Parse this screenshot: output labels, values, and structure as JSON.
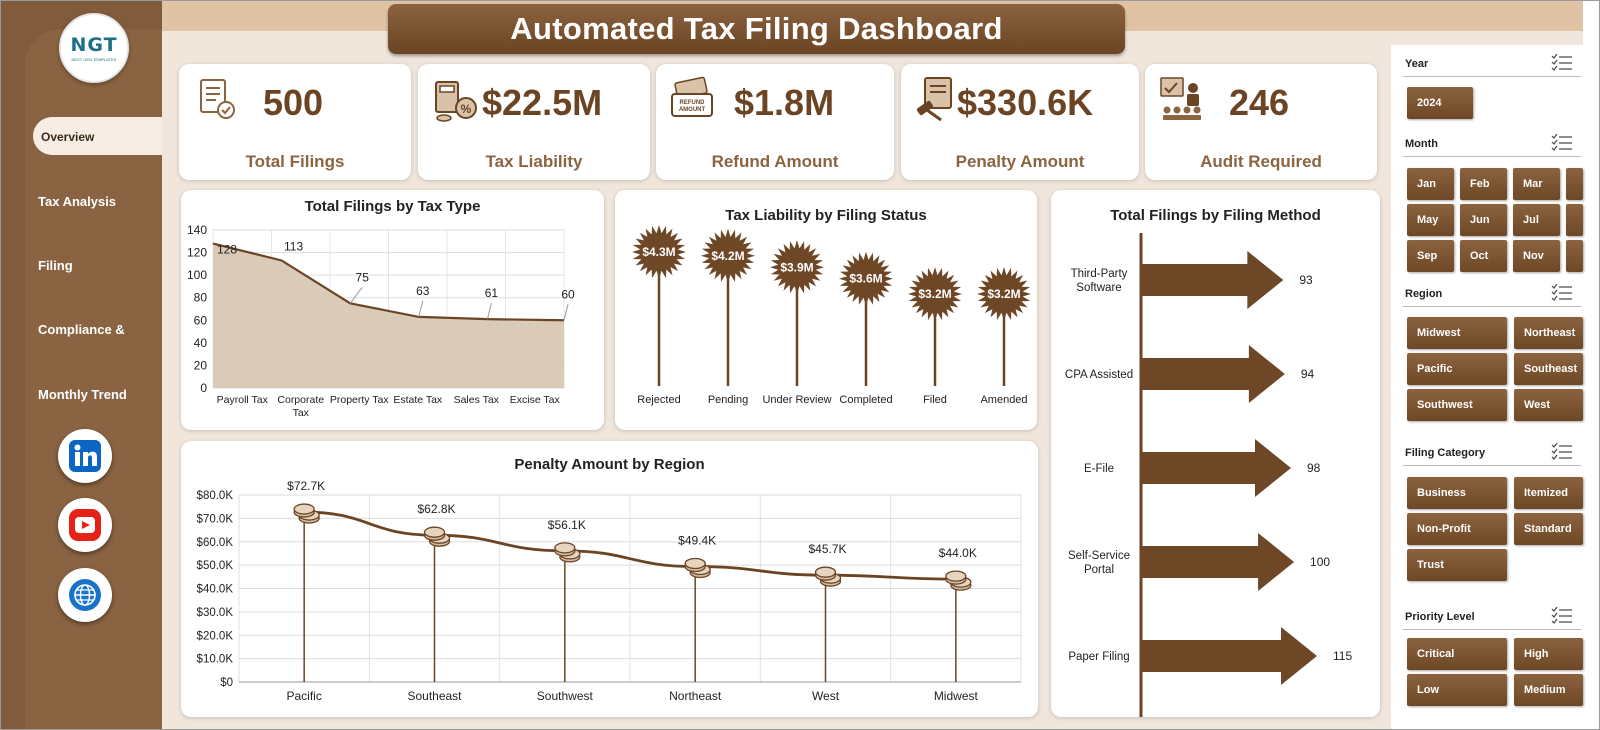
{
  "dashboard": {
    "title": "Automated Tax Filing Dashboard",
    "logo_text": "NGT",
    "logo_sub": "NEXT GEN TEMPLATES"
  },
  "sidebar": {
    "items": [
      {
        "label": "Overview",
        "active": true
      },
      {
        "label": "Tax Analysis"
      },
      {
        "label": "Filing"
      },
      {
        "label": "Compliance &"
      },
      {
        "label": "Monthly Trend"
      }
    ],
    "social": [
      "linkedin-icon",
      "youtube-icon",
      "globe-icon"
    ]
  },
  "kpis": [
    {
      "value": "500",
      "label": "Total Filings",
      "icon": "filing-checklist-icon"
    },
    {
      "value": "$22.5M",
      "label": "Tax Liability",
      "icon": "tax-calculator-icon"
    },
    {
      "value": "$1.8M",
      "label": "Refund Amount",
      "icon": "refund-money-icon"
    },
    {
      "value": "$330.6K",
      "label": "Penalty Amount",
      "icon": "gavel-penalty-icon"
    },
    {
      "value": "246",
      "label": "Audit Required",
      "icon": "audit-presentation-icon"
    }
  ],
  "colors": {
    "brand": "#805b3c",
    "accent": "#6b4424",
    "fill": "#d8c7b4"
  },
  "chart_data": [
    {
      "type": "area",
      "title": "Total Filings by Tax Type",
      "categories": [
        "Payroll Tax",
        "Corporate Tax",
        "Property Tax",
        "Estate Tax",
        "Sales Tax",
        "Excise Tax"
      ],
      "values": [
        128,
        113,
        75,
        63,
        61,
        60
      ],
      "ylim": [
        0,
        140
      ],
      "yticks": [
        "0",
        "20",
        "40",
        "60",
        "80",
        "100",
        "120",
        "140"
      ],
      "grid": true
    },
    {
      "type": "bar",
      "title": "Tax Liability by Filing Status",
      "categories": [
        "Rejected",
        "Pending",
        "Under Review",
        "Completed",
        "Filed",
        "Amended"
      ],
      "values": [
        4.3,
        4.2,
        3.9,
        3.6,
        3.2,
        3.2
      ],
      "labels": [
        "$4.3M",
        "$4.2M",
        "$3.9M",
        "$3.6M",
        "$3.2M",
        "$3.2M"
      ]
    },
    {
      "type": "bar",
      "title": "Total Filings by Filing Method",
      "orientation": "horizontal",
      "categories": [
        "Third-Party Software",
        "CPA Assisted",
        "E-File",
        "Self-Service Portal",
        "Paper Filing"
      ],
      "values": [
        93,
        94,
        98,
        100,
        115
      ]
    },
    {
      "type": "line",
      "title": "Penalty Amount by Region",
      "categories": [
        "Pacific",
        "Southeast",
        "Southwest",
        "Northeast",
        "West",
        "Midwest"
      ],
      "values": [
        72.7,
        62.8,
        56.1,
        49.4,
        45.7,
        44.0
      ],
      "labels": [
        "$72.7K",
        "$62.8K",
        "$56.1K",
        "$49.4K",
        "$45.7K",
        "$44.0K"
      ],
      "ylim": [
        0,
        80
      ],
      "yticks": [
        "$0",
        "$10.0K",
        "$20.0K",
        "$30.0K",
        "$40.0K",
        "$50.0K",
        "$60.0K",
        "$70.0K",
        "$80.0K"
      ],
      "grid": true
    }
  ],
  "filters": {
    "year": {
      "label": "Year",
      "options": [
        "2024"
      ]
    },
    "month": {
      "label": "Month",
      "options": [
        "Jan",
        "Feb",
        "Mar",
        "May",
        "Jun",
        "Jul",
        "Sep",
        "Oct",
        "Nov"
      ]
    },
    "region": {
      "label": "Region",
      "options": [
        "Midwest",
        "Northeast",
        "Pacific",
        "Southeast",
        "Southwest",
        "West"
      ]
    },
    "filing_category": {
      "label": "Filing Category",
      "options": [
        "Business",
        "Itemized",
        "Non-Profit",
        "Standard",
        "Trust"
      ]
    },
    "priority": {
      "label": "Priority Level",
      "options": [
        "Critical",
        "High",
        "Low",
        "Medium"
      ]
    }
  }
}
